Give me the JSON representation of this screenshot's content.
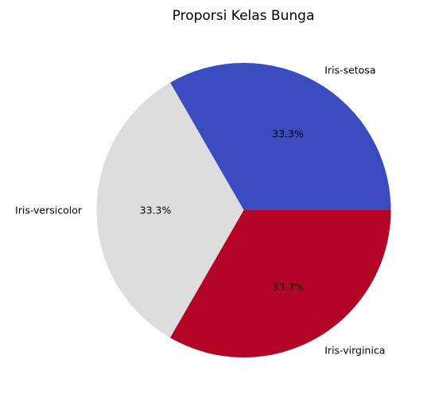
{
  "chart_data": {
    "type": "pie",
    "title": "Proporsi Kelas Bunga",
    "categories": [
      "Iris-setosa",
      "Iris-versicolor",
      "Iris-virginica"
    ],
    "values": [
      33.3,
      33.3,
      33.3
    ],
    "percent_labels": [
      "33.3%",
      "33.3%",
      "33.3%"
    ],
    "colors": [
      "#3b4cc0",
      "#dddddd",
      "#b40426"
    ],
    "start_angle_deg": 0,
    "direction": "counterclockwise",
    "legend": "none"
  }
}
